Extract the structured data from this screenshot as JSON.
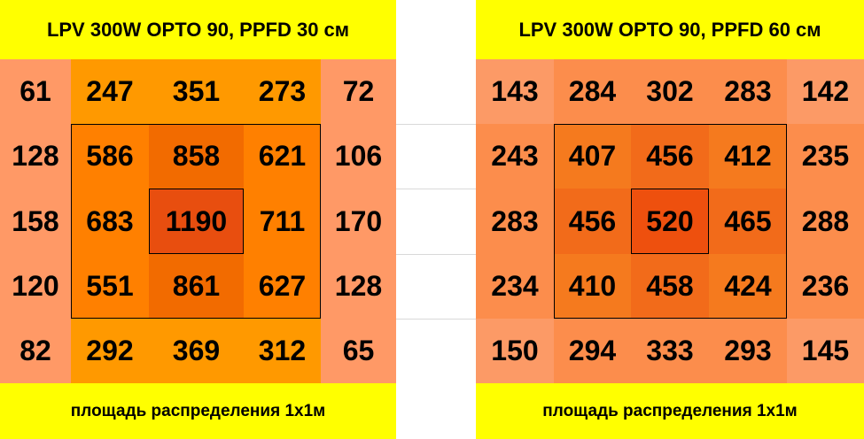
{
  "panels": [
    {
      "title": "LPV 300W OPTO 90, PPFD 30 см",
      "grid": [
        [
          "61",
          "247",
          "351",
          "273",
          "72"
        ],
        [
          "128",
          "586",
          "858",
          "621",
          "106"
        ],
        [
          "158",
          "683",
          "1190",
          "711",
          "170"
        ],
        [
          "120",
          "551",
          "861",
          "627",
          "128"
        ],
        [
          "82",
          "292",
          "369",
          "312",
          "65"
        ]
      ],
      "footer": "площадь распределения  1х1м"
    },
    {
      "title": "LPV 300W OPTO 90, PPFD 60 см",
      "grid": [
        [
          "143",
          "284",
          "302",
          "283",
          "142"
        ],
        [
          "243",
          "407",
          "456",
          "412",
          "235"
        ],
        [
          "283",
          "456",
          "520",
          "465",
          "288"
        ],
        [
          "234",
          "410",
          "458",
          "424",
          "236"
        ],
        [
          "150",
          "294",
          "333",
          "293",
          "145"
        ]
      ],
      "footer": "площадь распределения  1х1м"
    }
  ]
}
